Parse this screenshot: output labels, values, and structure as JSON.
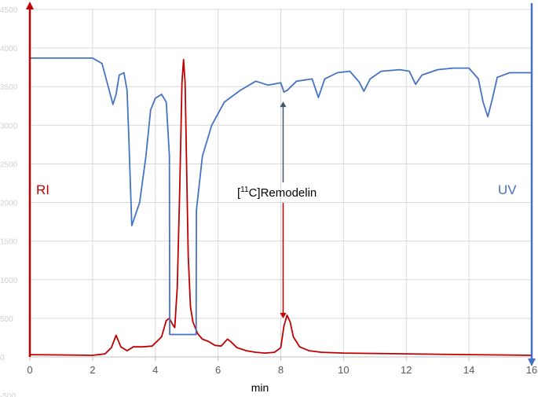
{
  "chart_data": {
    "type": "line",
    "title": "",
    "xlabel": "min",
    "ylabel": "",
    "xlim": [
      0,
      16
    ],
    "ylim": [
      -500,
      4500
    ],
    "x_ticks": [
      "0",
      "2",
      "4",
      "6",
      "8",
      "10",
      "12",
      "14",
      "16"
    ],
    "y_ticks": [
      "-500",
      "0",
      "500",
      "1000",
      "1500",
      "2000",
      "2500",
      "3000",
      "3500",
      "4000",
      "4500"
    ],
    "grid": true,
    "colors": {
      "ri": "#c00000",
      "uv": "#4472c4",
      "grid": "#d9d9d9"
    },
    "series": [
      {
        "name": "RI",
        "color": "#c00000",
        "x": [
          0,
          1.0,
          2.0,
          2.4,
          2.6,
          2.75,
          2.9,
          3.1,
          3.3,
          3.6,
          3.9,
          4.2,
          4.35,
          4.45,
          4.55,
          4.62,
          4.7,
          4.78,
          4.85,
          4.9,
          4.95,
          5.0,
          5.05,
          5.12,
          5.2,
          5.35,
          5.5,
          5.7,
          5.9,
          6.1,
          6.3,
          6.4,
          6.6,
          6.9,
          7.2,
          7.5,
          7.8,
          8.0,
          8.1,
          8.2,
          8.3,
          8.4,
          8.6,
          8.9,
          9.3,
          10,
          11,
          12,
          13,
          14,
          15,
          16
        ],
        "y": [
          30,
          25,
          20,
          40,
          120,
          280,
          130,
          80,
          130,
          130,
          140,
          260,
          470,
          500,
          420,
          380,
          900,
          2200,
          3550,
          3850,
          3550,
          2400,
          1300,
          650,
          450,
          300,
          230,
          200,
          150,
          140,
          230,
          200,
          120,
          80,
          60,
          50,
          60,
          120,
          400,
          540,
          450,
          260,
          130,
          80,
          60,
          50,
          45,
          40,
          35,
          30,
          25,
          20
        ]
      },
      {
        "name": "UV",
        "color": "#4472c4",
        "x": [
          0,
          1.0,
          2.0,
          2.3,
          2.5,
          2.65,
          2.75,
          2.85,
          3.0,
          3.1,
          3.15,
          3.25,
          3.5,
          3.7,
          3.85,
          4.0,
          4.2,
          4.35,
          4.45,
          4.46,
          4.6,
          5.0,
          5.3,
          5.31,
          5.5,
          5.8,
          6.2,
          6.7,
          7.2,
          7.6,
          8.0,
          8.1,
          8.2,
          8.5,
          9.0,
          9.2,
          9.4,
          9.8,
          10.2,
          10.5,
          10.65,
          10.85,
          11.2,
          11.8,
          12.1,
          12.3,
          12.5,
          13.0,
          13.5,
          14.0,
          14.3,
          14.45,
          14.6,
          14.75,
          14.9,
          15.3,
          15.7,
          16.0
        ],
        "y": [
          3870,
          3870,
          3870,
          3800,
          3500,
          3270,
          3400,
          3650,
          3680,
          3450,
          2900,
          1700,
          2000,
          2600,
          3200,
          3350,
          3400,
          3300,
          2600,
          290,
          290,
          290,
          290,
          1900,
          2600,
          3000,
          3300,
          3450,
          3570,
          3520,
          3550,
          3430,
          3450,
          3570,
          3600,
          3360,
          3600,
          3680,
          3700,
          3560,
          3440,
          3600,
          3700,
          3720,
          3700,
          3530,
          3650,
          3720,
          3740,
          3740,
          3600,
          3300,
          3110,
          3350,
          3620,
          3680,
          3680,
          3680
        ]
      }
    ],
    "axis_labels": {
      "left": "RI",
      "right": "UV"
    },
    "annotation": {
      "text_prefix": "[",
      "superscript": "11",
      "text_suffix": "C]Remodelin",
      "x": 8.1,
      "arrow_up_to": 3430,
      "arrow_down_to": 560
    }
  }
}
